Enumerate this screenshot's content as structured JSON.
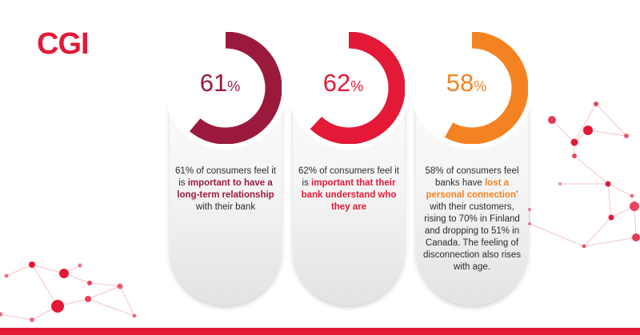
{
  "brand": {
    "logo_text": "CGI",
    "logo_color": "#e31937",
    "bar_color": "#e31937"
  },
  "chart_data": {
    "type": "pie",
    "title": "",
    "series": [
      {
        "value": 61,
        "unit": "%",
        "color": "#9b1a3c"
      },
      {
        "value": 62,
        "unit": "%",
        "color": "#e31937"
      },
      {
        "value": 58,
        "unit": "%",
        "color": "#f58220"
      }
    ]
  },
  "cards": [
    {
      "percent": "61",
      "percent_sign": "%",
      "color": "#9b1a3c",
      "text_before": "61% of consumers feel it is ",
      "text_highlight": "important to have a long-term relationship",
      "text_after": " with their bank"
    },
    {
      "percent": "62",
      "percent_sign": "%",
      "color": "#e31937",
      "text_before": "62% of consumers feel it is ",
      "text_highlight": "important that their bank understand who they are",
      "text_after": ""
    },
    {
      "percent": "58",
      "percent_sign": "%",
      "color": "#f58220",
      "text_before": "58% of consumers feel banks have ",
      "text_highlight": "lost a personal connection",
      "text_after": "’ with their customers, rising to 70% in Finland and dropping to 51% in Canada. The feeling of disconnection also rises with age."
    }
  ]
}
